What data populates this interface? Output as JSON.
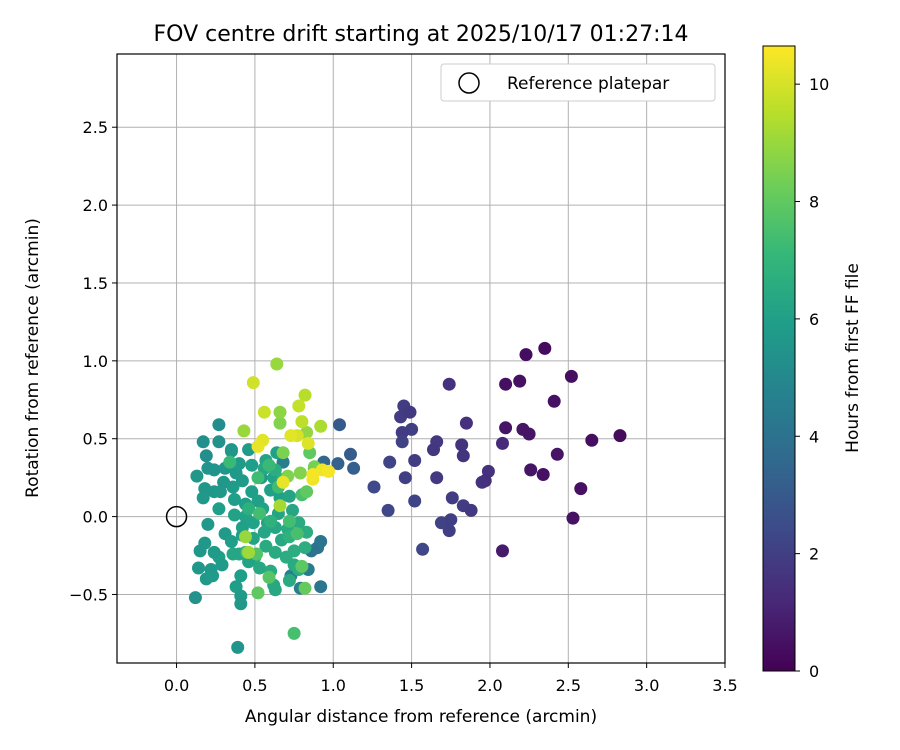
{
  "chart_data": {
    "type": "scatter",
    "title": "FOV centre drift starting at 2025/10/17 01:27:14",
    "xlabel": "Angular distance from reference (arcmin)",
    "ylabel": "Rotation from reference (arcmin)",
    "xlim": [
      -0.38,
      3.5
    ],
    "ylim": [
      -0.94,
      2.97
    ],
    "xticks": [
      "0.0",
      "0.5",
      "1.0",
      "1.5",
      "2.0",
      "2.5",
      "3.0",
      "3.5"
    ],
    "xtick_values": [
      0,
      0.5,
      1,
      1.5,
      2,
      2.5,
      3,
      3.5
    ],
    "yticks": [
      "−0.5",
      "0.0",
      "0.5",
      "1.0",
      "1.5",
      "2.0",
      "2.5"
    ],
    "ytick_values": [
      -0.5,
      0,
      0.5,
      1,
      1.5,
      2,
      2.5
    ],
    "grid": true,
    "legend": {
      "position": "top-right",
      "entries": [
        {
          "label": "Reference platepar",
          "marker": "open-circle"
        }
      ]
    },
    "reference_point": {
      "x": 0.0,
      "y": 0.0
    },
    "colorbar": {
      "label": "Hours from first FF file",
      "colormap": "viridis",
      "range": [
        0,
        10.65
      ],
      "ticks": [
        "0",
        "2",
        "4",
        "6",
        "8",
        "10"
      ],
      "tick_values": [
        0,
        2,
        4,
        6,
        8,
        10
      ],
      "colors": [
        "#440154",
        "#482878",
        "#3e4989",
        "#31688e",
        "#26828e",
        "#1f9e89",
        "#35b779",
        "#6ece58",
        "#b5de2b",
        "#fde725"
      ]
    },
    "series": [
      {
        "points": [
          [
            2.35,
            1.08,
            0.3
          ],
          [
            2.23,
            1.04,
            0.35
          ],
          [
            2.52,
            0.9,
            0.4
          ],
          [
            2.19,
            0.87,
            0.5
          ],
          [
            2.1,
            0.85,
            0.45
          ],
          [
            2.41,
            0.74,
            0.5
          ],
          [
            2.83,
            0.52,
            0.3
          ],
          [
            2.65,
            0.49,
            0.4
          ],
          [
            2.21,
            0.56,
            0.6
          ],
          [
            2.1,
            0.57,
            0.6
          ],
          [
            2.25,
            0.53,
            0.6
          ],
          [
            2.43,
            0.4,
            0.6
          ],
          [
            2.26,
            0.3,
            0.6
          ],
          [
            2.34,
            0.27,
            0.5
          ],
          [
            2.58,
            0.18,
            0.5
          ],
          [
            2.53,
            -0.01,
            0.5
          ],
          [
            2.08,
            -0.22,
            0.8
          ],
          [
            1.74,
            0.85,
            1.5
          ],
          [
            1.85,
            0.6,
            1.5
          ],
          [
            1.45,
            0.71,
            1.9
          ],
          [
            1.43,
            0.64,
            1.9
          ],
          [
            1.49,
            0.67,
            1.8
          ],
          [
            1.5,
            0.56,
            2.0
          ],
          [
            1.44,
            0.54,
            1.9
          ],
          [
            1.44,
            0.48,
            2.1
          ],
          [
            1.66,
            0.48,
            1.8
          ],
          [
            1.64,
            0.43,
            1.7
          ],
          [
            1.82,
            0.46,
            1.6
          ],
          [
            1.83,
            0.39,
            1.6
          ],
          [
            1.52,
            0.36,
            1.9
          ],
          [
            1.36,
            0.35,
            2.2
          ],
          [
            1.46,
            0.25,
            2.0
          ],
          [
            1.66,
            0.25,
            1.8
          ],
          [
            1.99,
            0.29,
            1.5
          ],
          [
            1.97,
            0.23,
            1.4
          ],
          [
            1.95,
            0.22,
            1.5
          ],
          [
            2.08,
            0.47,
            1.3
          ],
          [
            1.26,
            0.19,
            2.4
          ],
          [
            1.52,
            0.1,
            2.2
          ],
          [
            1.76,
            0.12,
            1.9
          ],
          [
            1.83,
            0.07,
            1.9
          ],
          [
            1.88,
            0.04,
            1.8
          ],
          [
            1.35,
            0.04,
            2.3
          ],
          [
            1.69,
            -0.04,
            2.1
          ],
          [
            1.75,
            -0.02,
            2.0
          ],
          [
            1.74,
            -0.09,
            2.0
          ],
          [
            1.57,
            -0.21,
            2.3
          ],
          [
            1.04,
            0.59,
            3.0
          ],
          [
            1.11,
            0.4,
            3.1
          ],
          [
            1.13,
            0.31,
            3.2
          ],
          [
            1.03,
            0.34,
            3.3
          ],
          [
            0.94,
            0.35,
            3.5
          ],
          [
            0.88,
            0.31,
            3.6
          ],
          [
            0.86,
            -0.22,
            4.1
          ],
          [
            0.9,
            -0.2,
            4.0
          ],
          [
            0.92,
            -0.16,
            4.2
          ],
          [
            0.92,
            -0.45,
            4.2
          ],
          [
            0.84,
            -0.34,
            4.4
          ],
          [
            0.79,
            -0.46,
            4.6
          ],
          [
            0.73,
            -0.38,
            4.7
          ],
          [
            0.68,
            0.35,
            4.5
          ],
          [
            0.27,
            0.59,
            5.2
          ],
          [
            0.35,
            0.43,
            5.4
          ],
          [
            0.17,
            0.48,
            5.3
          ],
          [
            0.27,
            0.48,
            5.4
          ],
          [
            0.19,
            0.39,
            5.3
          ],
          [
            0.24,
            0.3,
            5.5
          ],
          [
            0.31,
            0.31,
            5.6
          ],
          [
            0.13,
            0.26,
            5.6
          ],
          [
            0.2,
            0.31,
            5.5
          ],
          [
            0.38,
            0.28,
            5.7
          ],
          [
            0.3,
            0.22,
            5.6
          ],
          [
            0.24,
            0.16,
            5.6
          ],
          [
            0.18,
            0.18,
            5.6
          ],
          [
            0.17,
            0.12,
            5.7
          ],
          [
            0.28,
            0.16,
            5.7
          ],
          [
            0.36,
            0.19,
            5.8
          ],
          [
            0.42,
            0.23,
            5.8
          ],
          [
            0.37,
            0.11,
            5.9
          ],
          [
            0.48,
            0.16,
            5.9
          ],
          [
            0.54,
            0.25,
            5.8
          ],
          [
            0.4,
            0.34,
            5.8
          ],
          [
            0.48,
            0.33,
            5.9
          ],
          [
            0.46,
            0.43,
            5.8
          ],
          [
            0.27,
            0.05,
            5.9
          ],
          [
            0.44,
            0.08,
            5.9
          ],
          [
            0.52,
            0.1,
            6.0
          ],
          [
            0.6,
            0.17,
            6.0
          ],
          [
            0.66,
            0.12,
            6.0
          ],
          [
            0.55,
            0.05,
            6.1
          ],
          [
            0.44,
            0.0,
            6.1
          ],
          [
            0.37,
            0.01,
            6.1
          ],
          [
            0.49,
            -0.04,
            6.1
          ],
          [
            0.42,
            -0.07,
            6.0
          ],
          [
            0.58,
            -0.04,
            6.2
          ],
          [
            0.65,
            0.02,
            6.2
          ],
          [
            0.74,
            0.04,
            6.3
          ],
          [
            0.72,
            0.13,
            6.2
          ],
          [
            0.62,
            0.25,
            6.1
          ],
          [
            0.57,
            0.36,
            6.2
          ],
          [
            0.64,
            0.41,
            6.0
          ],
          [
            0.2,
            -0.05,
            5.7
          ],
          [
            0.31,
            -0.11,
            5.8
          ],
          [
            0.35,
            -0.16,
            5.9
          ],
          [
            0.42,
            -0.12,
            6.0
          ],
          [
            0.49,
            -0.14,
            6.2
          ],
          [
            0.56,
            -0.1,
            6.3
          ],
          [
            0.63,
            -0.07,
            6.3
          ],
          [
            0.67,
            -0.15,
            6.4
          ],
          [
            0.71,
            -0.08,
            6.5
          ],
          [
            0.78,
            -0.04,
            6.5
          ],
          [
            0.83,
            -0.1,
            6.6
          ],
          [
            0.82,
            -0.2,
            6.6
          ],
          [
            0.75,
            -0.22,
            6.6
          ],
          [
            0.7,
            -0.26,
            6.6
          ],
          [
            0.63,
            -0.23,
            6.5
          ],
          [
            0.57,
            -0.19,
            6.5
          ],
          [
            0.5,
            -0.26,
            6.5
          ],
          [
            0.44,
            -0.23,
            6.4
          ],
          [
            0.36,
            -0.24,
            6.3
          ],
          [
            0.27,
            -0.26,
            6.0
          ],
          [
            0.18,
            -0.17,
            5.7
          ],
          [
            0.15,
            -0.22,
            5.6
          ],
          [
            0.24,
            -0.23,
            5.8
          ],
          [
            0.14,
            -0.33,
            5.6
          ],
          [
            0.22,
            -0.34,
            5.7
          ],
          [
            0.19,
            -0.4,
            5.7
          ],
          [
            0.23,
            -0.38,
            5.8
          ],
          [
            0.29,
            -0.31,
            5.8
          ],
          [
            0.12,
            -0.52,
            5.4
          ],
          [
            0.38,
            -0.45,
            5.9
          ],
          [
            0.41,
            -0.51,
            5.8
          ],
          [
            0.41,
            -0.56,
            5.7
          ],
          [
            0.41,
            -0.38,
            5.9
          ],
          [
            0.46,
            -0.29,
            6.1
          ],
          [
            0.62,
            -0.44,
            6.4
          ],
          [
            0.63,
            -0.47,
            6.4
          ],
          [
            0.39,
            -0.84,
            5.5
          ],
          [
            0.4,
            -0.24,
            6.3
          ],
          [
            0.53,
            -0.33,
            6.4
          ],
          [
            0.6,
            -0.35,
            6.5
          ],
          [
            0.72,
            -0.41,
            6.5
          ],
          [
            0.75,
            -0.31,
            6.5
          ],
          [
            0.78,
            -0.34,
            6.6
          ],
          [
            0.35,
            0.42,
            5.6
          ],
          [
            0.56,
            0.31,
            6.4
          ],
          [
            0.63,
            0.3,
            6.6
          ],
          [
            0.68,
            0.24,
            6.8
          ],
          [
            0.6,
            -0.03,
            6.8
          ],
          [
            0.72,
            -0.13,
            6.8
          ],
          [
            0.46,
            0.05,
            6.7
          ],
          [
            0.34,
            0.35,
            7.2
          ],
          [
            0.59,
            0.33,
            7.2
          ],
          [
            0.52,
            0.25,
            7.3
          ],
          [
            0.65,
            0.19,
            7.3
          ],
          [
            0.53,
            0.02,
            7.4
          ],
          [
            0.72,
            -0.03,
            7.4
          ],
          [
            0.77,
            -0.11,
            7.5
          ],
          [
            0.8,
            0.14,
            7.5
          ],
          [
            0.45,
            -0.23,
            7.6
          ],
          [
            0.51,
            -0.24,
            7.7
          ],
          [
            0.59,
            -0.39,
            7.8
          ],
          [
            0.52,
            -0.49,
            8.0
          ],
          [
            0.8,
            -0.32,
            7.9
          ],
          [
            0.82,
            -0.46,
            8.1
          ],
          [
            0.75,
            -0.75,
            7.5
          ],
          [
            0.85,
            0.41,
            8.0
          ],
          [
            0.83,
            0.16,
            8.0
          ],
          [
            0.88,
            0.32,
            8.4
          ],
          [
            0.83,
            0.54,
            8.9
          ],
          [
            0.79,
            0.28,
            8.6
          ],
          [
            0.71,
            0.26,
            8.6
          ],
          [
            0.68,
            0.41,
            8.5
          ],
          [
            0.66,
            0.6,
            8.6
          ],
          [
            0.66,
            0.67,
            8.8
          ],
          [
            0.64,
            0.98,
            9.0
          ],
          [
            0.43,
            0.55,
            9.0
          ],
          [
            0.44,
            -0.13,
            9.0
          ],
          [
            0.46,
            -0.23,
            9.1
          ],
          [
            0.66,
            0.07,
            9.2
          ],
          [
            0.92,
            0.58,
            9.3
          ],
          [
            0.82,
            0.78,
            9.5
          ],
          [
            0.8,
            0.61,
            9.6
          ],
          [
            0.78,
            0.71,
            9.7
          ],
          [
            0.56,
            0.67,
            9.8
          ],
          [
            0.49,
            0.86,
            9.9
          ],
          [
            0.77,
            0.52,
            10.0
          ],
          [
            0.84,
            0.47,
            10.1
          ],
          [
            0.73,
            0.52,
            10.2
          ],
          [
            0.55,
            0.49,
            10.2
          ],
          [
            0.52,
            0.45,
            10.3
          ],
          [
            0.68,
            0.22,
            10.3
          ],
          [
            0.87,
            0.24,
            10.4
          ],
          [
            0.93,
            0.3,
            10.4
          ],
          [
            0.97,
            0.29,
            10.5
          ],
          [
            0.87,
            0.27,
            10.5
          ]
        ]
      }
    ]
  }
}
